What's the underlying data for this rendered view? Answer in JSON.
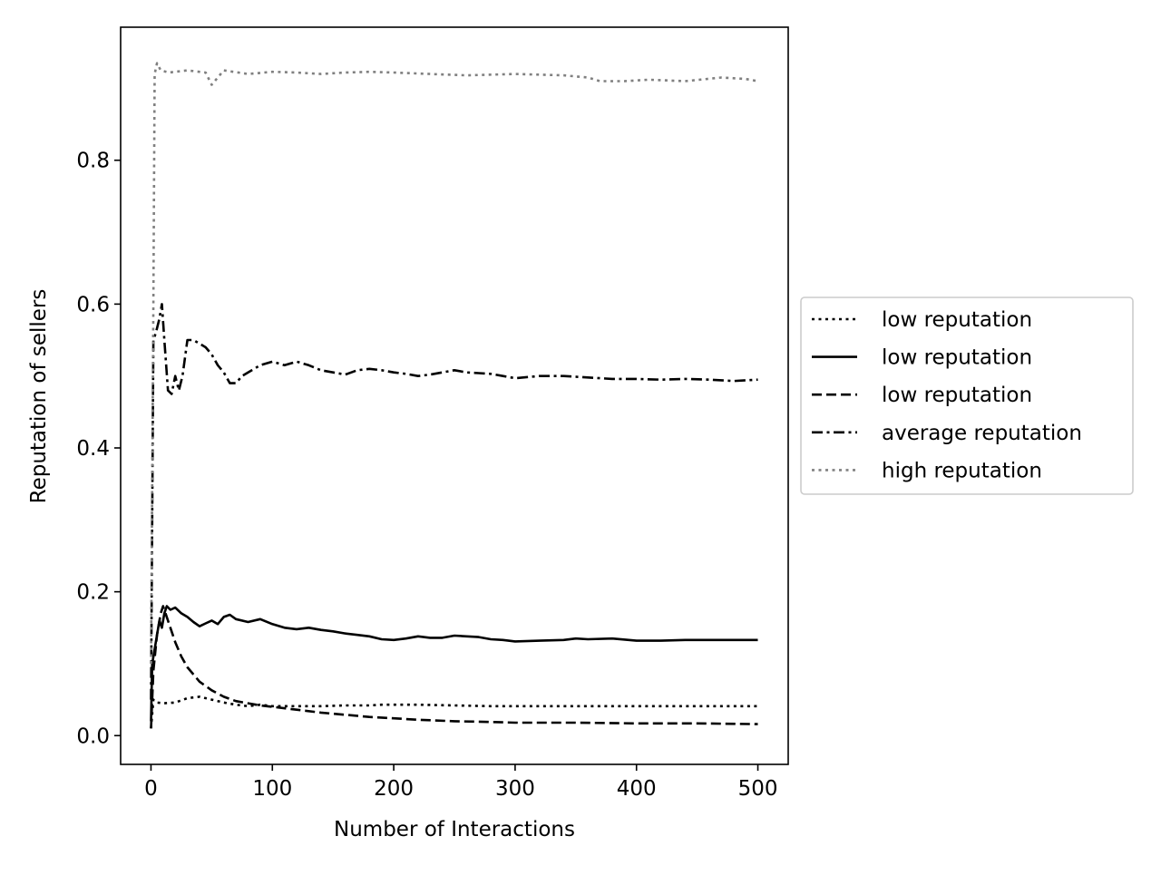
{
  "chart_data": {
    "type": "line",
    "title": "",
    "xlabel": "Number of Interactions",
    "ylabel": "Reputation of sellers",
    "xlim": [
      -25,
      525
    ],
    "ylim": [
      -0.04,
      0.985
    ],
    "x_ticks": [
      0,
      100,
      200,
      300,
      400,
      500
    ],
    "x_tick_labels": [
      "0",
      "100",
      "200",
      "300",
      "400",
      "500"
    ],
    "y_ticks": [
      0.0,
      0.2,
      0.4,
      0.6,
      0.8
    ],
    "y_tick_labels": [
      "0.0",
      "0.2",
      "0.4",
      "0.6",
      "0.8"
    ],
    "grid": false,
    "legend_position": "outside-right",
    "series": [
      {
        "name": "low reputation",
        "style": "dotted",
        "color": "#000000",
        "points": [
          [
            0,
            0.01
          ],
          [
            2,
            0.05
          ],
          [
            5,
            0.046
          ],
          [
            10,
            0.045
          ],
          [
            20,
            0.046
          ],
          [
            30,
            0.052
          ],
          [
            40,
            0.054
          ],
          [
            50,
            0.05
          ],
          [
            60,
            0.046
          ],
          [
            70,
            0.043
          ],
          [
            80,
            0.041
          ],
          [
            90,
            0.043
          ],
          [
            100,
            0.041
          ],
          [
            120,
            0.041
          ],
          [
            140,
            0.041
          ],
          [
            160,
            0.042
          ],
          [
            180,
            0.042
          ],
          [
            190,
            0.043
          ],
          [
            200,
            0.043
          ],
          [
            220,
            0.043
          ],
          [
            250,
            0.042
          ],
          [
            280,
            0.041
          ],
          [
            300,
            0.041
          ],
          [
            320,
            0.041
          ],
          [
            350,
            0.041
          ],
          [
            380,
            0.041
          ],
          [
            400,
            0.041
          ],
          [
            430,
            0.041
          ],
          [
            460,
            0.041
          ],
          [
            480,
            0.041
          ],
          [
            500,
            0.041
          ]
        ]
      },
      {
        "name": "low reputation",
        "style": "solid",
        "color": "#000000",
        "points": [
          [
            0,
            0.02
          ],
          [
            1,
            0.1
          ],
          [
            3,
            0.12
          ],
          [
            5,
            0.14
          ],
          [
            7,
            0.16
          ],
          [
            9,
            0.15
          ],
          [
            11,
            0.17
          ],
          [
            13,
            0.18
          ],
          [
            16,
            0.175
          ],
          [
            20,
            0.178
          ],
          [
            25,
            0.17
          ],
          [
            30,
            0.165
          ],
          [
            35,
            0.158
          ],
          [
            40,
            0.152
          ],
          [
            45,
            0.156
          ],
          [
            50,
            0.16
          ],
          [
            55,
            0.155
          ],
          [
            60,
            0.165
          ],
          [
            65,
            0.168
          ],
          [
            70,
            0.162
          ],
          [
            80,
            0.158
          ],
          [
            90,
            0.162
          ],
          [
            100,
            0.155
          ],
          [
            110,
            0.15
          ],
          [
            120,
            0.148
          ],
          [
            130,
            0.15
          ],
          [
            140,
            0.147
          ],
          [
            150,
            0.145
          ],
          [
            160,
            0.142
          ],
          [
            170,
            0.14
          ],
          [
            180,
            0.138
          ],
          [
            190,
            0.134
          ],
          [
            200,
            0.133
          ],
          [
            210,
            0.135
          ],
          [
            220,
            0.138
          ],
          [
            230,
            0.136
          ],
          [
            240,
            0.136
          ],
          [
            250,
            0.139
          ],
          [
            260,
            0.138
          ],
          [
            270,
            0.137
          ],
          [
            280,
            0.134
          ],
          [
            290,
            0.133
          ],
          [
            300,
            0.131
          ],
          [
            320,
            0.132
          ],
          [
            340,
            0.133
          ],
          [
            350,
            0.135
          ],
          [
            360,
            0.134
          ],
          [
            380,
            0.135
          ],
          [
            400,
            0.132
          ],
          [
            420,
            0.132
          ],
          [
            440,
            0.133
          ],
          [
            460,
            0.133
          ],
          [
            480,
            0.133
          ],
          [
            500,
            0.133
          ]
        ]
      },
      {
        "name": "low reputation",
        "style": "dashed",
        "color": "#000000",
        "points": [
          [
            0,
            0.01
          ],
          [
            2,
            0.09
          ],
          [
            5,
            0.14
          ],
          [
            8,
            0.17
          ],
          [
            10,
            0.18
          ],
          [
            12,
            0.17
          ],
          [
            15,
            0.155
          ],
          [
            20,
            0.13
          ],
          [
            25,
            0.11
          ],
          [
            30,
            0.095
          ],
          [
            40,
            0.075
          ],
          [
            50,
            0.063
          ],
          [
            60,
            0.054
          ],
          [
            70,
            0.048
          ],
          [
            80,
            0.045
          ],
          [
            90,
            0.042
          ],
          [
            100,
            0.04
          ],
          [
            120,
            0.036
          ],
          [
            140,
            0.032
          ],
          [
            160,
            0.029
          ],
          [
            180,
            0.026
          ],
          [
            200,
            0.024
          ],
          [
            220,
            0.022
          ],
          [
            250,
            0.02
          ],
          [
            280,
            0.019
          ],
          [
            300,
            0.018
          ],
          [
            350,
            0.018
          ],
          [
            400,
            0.017
          ],
          [
            450,
            0.017
          ],
          [
            500,
            0.016
          ]
        ]
      },
      {
        "name": "average reputation",
        "style": "dashdot",
        "color": "#000000",
        "points": [
          [
            0,
            0.05
          ],
          [
            1,
            0.3
          ],
          [
            2,
            0.55
          ],
          [
            4,
            0.56
          ],
          [
            7,
            0.58
          ],
          [
            9,
            0.6
          ],
          [
            11,
            0.55
          ],
          [
            14,
            0.48
          ],
          [
            17,
            0.475
          ],
          [
            20,
            0.5
          ],
          [
            23,
            0.48
          ],
          [
            26,
            0.5
          ],
          [
            30,
            0.55
          ],
          [
            35,
            0.55
          ],
          [
            40,
            0.545
          ],
          [
            45,
            0.54
          ],
          [
            50,
            0.53
          ],
          [
            55,
            0.515
          ],
          [
            60,
            0.505
          ],
          [
            65,
            0.49
          ],
          [
            70,
            0.49
          ],
          [
            75,
            0.5
          ],
          [
            80,
            0.505
          ],
          [
            85,
            0.51
          ],
          [
            90,
            0.515
          ],
          [
            100,
            0.52
          ],
          [
            110,
            0.515
          ],
          [
            120,
            0.52
          ],
          [
            130,
            0.515
          ],
          [
            140,
            0.508
          ],
          [
            150,
            0.505
          ],
          [
            160,
            0.502
          ],
          [
            170,
            0.508
          ],
          [
            180,
            0.51
          ],
          [
            190,
            0.508
          ],
          [
            200,
            0.505
          ],
          [
            210,
            0.503
          ],
          [
            220,
            0.5
          ],
          [
            230,
            0.502
          ],
          [
            240,
            0.505
          ],
          [
            250,
            0.508
          ],
          [
            260,
            0.505
          ],
          [
            270,
            0.504
          ],
          [
            280,
            0.503
          ],
          [
            290,
            0.5
          ],
          [
            300,
            0.497
          ],
          [
            320,
            0.5
          ],
          [
            340,
            0.5
          ],
          [
            360,
            0.498
          ],
          [
            380,
            0.496
          ],
          [
            400,
            0.496
          ],
          [
            420,
            0.495
          ],
          [
            440,
            0.496
          ],
          [
            460,
            0.495
          ],
          [
            480,
            0.493
          ],
          [
            500,
            0.495
          ]
        ]
      },
      {
        "name": "high reputation",
        "style": "dotted",
        "color": "#808080",
        "points": [
          [
            0,
            0.1
          ],
          [
            2,
            0.6
          ],
          [
            3,
            0.92
          ],
          [
            5,
            0.935
          ],
          [
            8,
            0.925
          ],
          [
            15,
            0.922
          ],
          [
            30,
            0.925
          ],
          [
            45,
            0.922
          ],
          [
            50,
            0.905
          ],
          [
            55,
            0.915
          ],
          [
            60,
            0.925
          ],
          [
            80,
            0.92
          ],
          [
            100,
            0.923
          ],
          [
            120,
            0.922
          ],
          [
            140,
            0.92
          ],
          [
            160,
            0.922
          ],
          [
            180,
            0.923
          ],
          [
            200,
            0.922
          ],
          [
            230,
            0.92
          ],
          [
            260,
            0.918
          ],
          [
            300,
            0.92
          ],
          [
            340,
            0.918
          ],
          [
            360,
            0.915
          ],
          [
            370,
            0.91
          ],
          [
            390,
            0.91
          ],
          [
            410,
            0.912
          ],
          [
            440,
            0.91
          ],
          [
            470,
            0.915
          ],
          [
            490,
            0.913
          ],
          [
            500,
            0.91
          ]
        ]
      }
    ]
  }
}
